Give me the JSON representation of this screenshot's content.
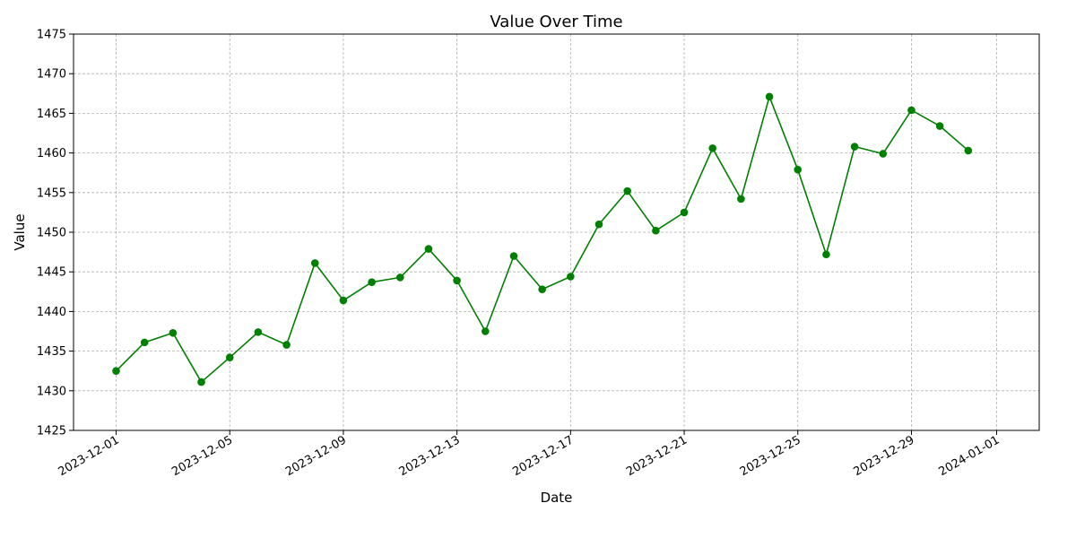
{
  "chart_data": {
    "type": "line",
    "title": "Value Over Time",
    "xlabel": "Date",
    "ylabel": "Value",
    "ylim": [
      1425,
      1475
    ],
    "xlim": [
      "2023-11-29",
      "2024-01-02"
    ],
    "y_ticks": [
      1425,
      1430,
      1435,
      1440,
      1445,
      1450,
      1455,
      1460,
      1465,
      1470,
      1475
    ],
    "x_ticks": [
      "2023-12-01",
      "2023-12-05",
      "2023-12-09",
      "2023-12-13",
      "2023-12-17",
      "2023-12-21",
      "2023-12-25",
      "2023-12-29",
      "2024-01-01"
    ],
    "grid": true,
    "color": "#008000",
    "marker": "circle",
    "x": [
      "2023-12-01",
      "2023-12-02",
      "2023-12-03",
      "2023-12-04",
      "2023-12-05",
      "2023-12-06",
      "2023-12-07",
      "2023-12-08",
      "2023-12-09",
      "2023-12-10",
      "2023-12-11",
      "2023-12-12",
      "2023-12-13",
      "2023-12-14",
      "2023-12-15",
      "2023-12-16",
      "2023-12-17",
      "2023-12-18",
      "2023-12-19",
      "2023-12-20",
      "2023-12-21",
      "2023-12-22",
      "2023-12-23",
      "2023-12-24",
      "2023-12-25",
      "2023-12-26",
      "2023-12-27",
      "2023-12-28",
      "2023-12-29",
      "2023-12-30",
      "2023-12-31"
    ],
    "values": [
      1432.5,
      1436.1,
      1437.3,
      1431.1,
      1434.2,
      1437.4,
      1435.8,
      1446.1,
      1441.4,
      1443.7,
      1444.3,
      1447.9,
      1443.9,
      1437.5,
      1447.0,
      1442.8,
      1444.4,
      1451.0,
      1455.2,
      1450.2,
      1452.5,
      1460.6,
      1454.2,
      1467.1,
      1457.9,
      1447.2,
      1460.8,
      1459.9,
      1465.4,
      1463.4,
      1460.3
    ]
  }
}
